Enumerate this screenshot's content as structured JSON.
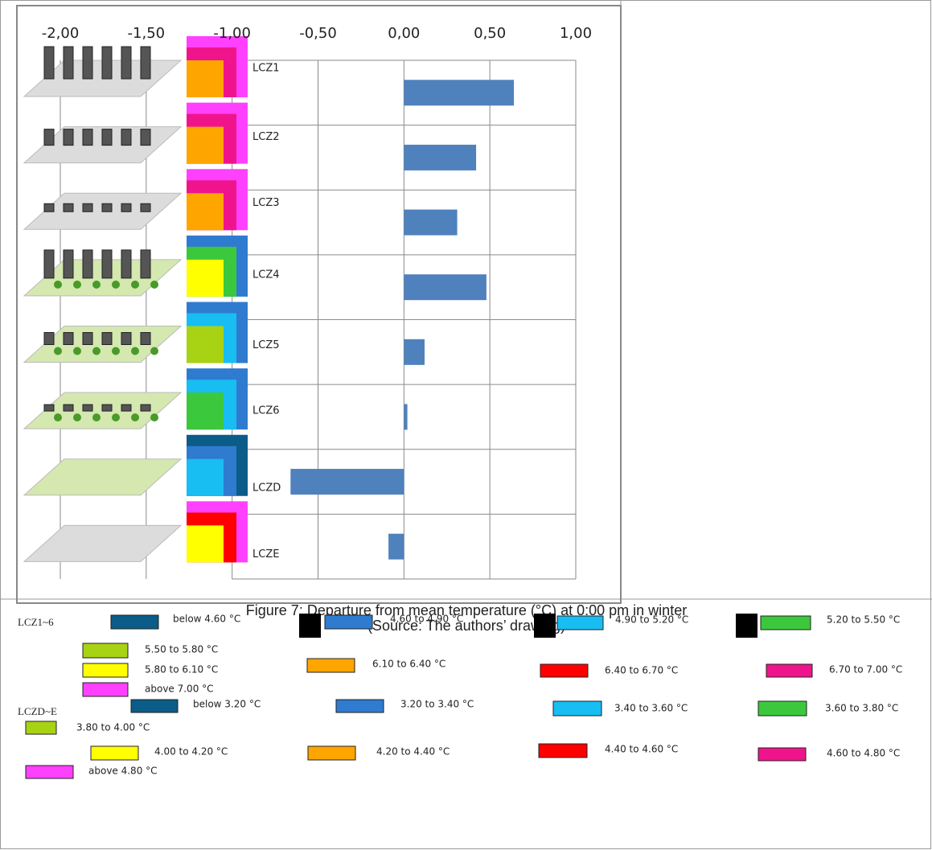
{
  "chart_data": {
    "type": "barh",
    "categories": [
      "LCZ1",
      "LCZ2",
      "LCZ3",
      "LCZ4",
      "LCZ5",
      "LCZ6",
      "LCZD",
      "LCZE"
    ],
    "values": [
      0.64,
      0.42,
      0.31,
      0.48,
      0.12,
      0.02,
      -0.66,
      -0.09
    ],
    "color": "#4f81bd",
    "xlim": [
      -2,
      1
    ],
    "xticks": [
      {
        "value": -2,
        "label": "-2,00"
      },
      {
        "value": -1.5,
        "label": "-1,50"
      },
      {
        "value": -1,
        "label": "-1,00"
      },
      {
        "value": -0.5,
        "label": "-0,50"
      },
      {
        "value": 0,
        "label": "0,00"
      },
      {
        "value": 0.5,
        "label": "0,50"
      },
      {
        "value": 1,
        "label": "1,00"
      }
    ],
    "grid": true
  },
  "caption": "Figure 7: Departure from mean temperature (°C) at 0:00 pm in winter",
  "source": "(Source: The authors’ drawing)",
  "legend_groups": [
    {
      "title": "LCZ1~6",
      "items": [
        {
          "label": "below 4.60 °C",
          "color": "#0b5c88"
        },
        {
          "label": "4.60 to 4.90 °C",
          "color": "#2f7bd0"
        },
        {
          "label": "4.90 to 5.20 °C",
          "color": "#18bdf2"
        },
        {
          "label": "5.20 to 5.50 °C",
          "color": "#3cc83c"
        },
        {
          "label": "5.50 to 5.80 °C",
          "color": "#a8d214"
        },
        {
          "label": "5.80 to 6.10 °C",
          "color": "#ffff00"
        },
        {
          "label": "6.10 to 6.40 °C",
          "color": "#ffa500"
        },
        {
          "label": "6.40 to 6.70 °C",
          "color": "#ff0000"
        },
        {
          "label": "6.70 to 7.00 °C",
          "color": "#f0148c"
        },
        {
          "label": "above 7.00 °C",
          "color": "#ff40ff"
        }
      ]
    },
    {
      "title": "LCZD~E",
      "items": [
        {
          "label": "below 3.20 °C",
          "color": "#0b5c88"
        },
        {
          "label": "3.20 to 3.40 °C",
          "color": "#2f7bd0"
        },
        {
          "label": "3.40 to 3.60 °C",
          "color": "#18bdf2"
        },
        {
          "label": "3.60 to 3.80 °C",
          "color": "#3cc83c"
        },
        {
          "label": "3.80 to 4.00 °C",
          "color": "#a8d214"
        },
        {
          "label": "4.00 to 4.20 °C",
          "color": "#ffff00"
        },
        {
          "label": "4.20 to 4.40 °C",
          "color": "#ffa500"
        },
        {
          "label": "4.40 to 4.60 °C",
          "color": "#ff0000"
        },
        {
          "label": "4.60 to 4.80 °C",
          "color": "#f0148c"
        },
        {
          "label": "above 4.80 °C",
          "color": "#ff40ff"
        }
      ]
    }
  ]
}
